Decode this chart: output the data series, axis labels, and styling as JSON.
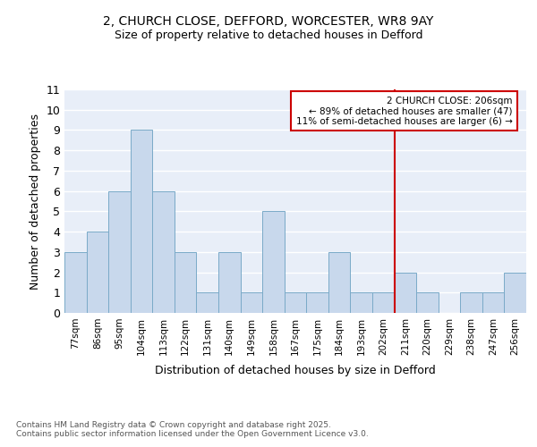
{
  "title_line1": "2, CHURCH CLOSE, DEFFORD, WORCESTER, WR8 9AY",
  "title_line2": "Size of property relative to detached houses in Defford",
  "xlabel": "Distribution of detached houses by size in Defford",
  "ylabel": "Number of detached properties",
  "footer": "Contains HM Land Registry data © Crown copyright and database right 2025.\nContains public sector information licensed under the Open Government Licence v3.0.",
  "categories": [
    "77sqm",
    "86sqm",
    "95sqm",
    "104sqm",
    "113sqm",
    "122sqm",
    "131sqm",
    "140sqm",
    "149sqm",
    "158sqm",
    "167sqm",
    "175sqm",
    "184sqm",
    "193sqm",
    "202sqm",
    "211sqm",
    "220sqm",
    "229sqm",
    "238sqm",
    "247sqm",
    "256sqm"
  ],
  "values": [
    3,
    4,
    6,
    9,
    6,
    3,
    1,
    3,
    1,
    5,
    1,
    1,
    3,
    1,
    1,
    2,
    1,
    0,
    1,
    1,
    2
  ],
  "bar_color": "#c8d8ec",
  "bar_edge_color": "#7aaac8",
  "bg_color": "#e8eef8",
  "grid_color": "#ffffff",
  "marker_color": "#cc0000",
  "marker_after_index": 14,
  "annotation_title": "2 CHURCH CLOSE: 206sqm",
  "annotation_line1": "← 89% of detached houses are smaller (47)",
  "annotation_line2": "11% of semi-detached houses are larger (6) →",
  "ylim": [
    0,
    11
  ],
  "yticks": [
    0,
    1,
    2,
    3,
    4,
    5,
    6,
    7,
    8,
    9,
    10,
    11
  ]
}
